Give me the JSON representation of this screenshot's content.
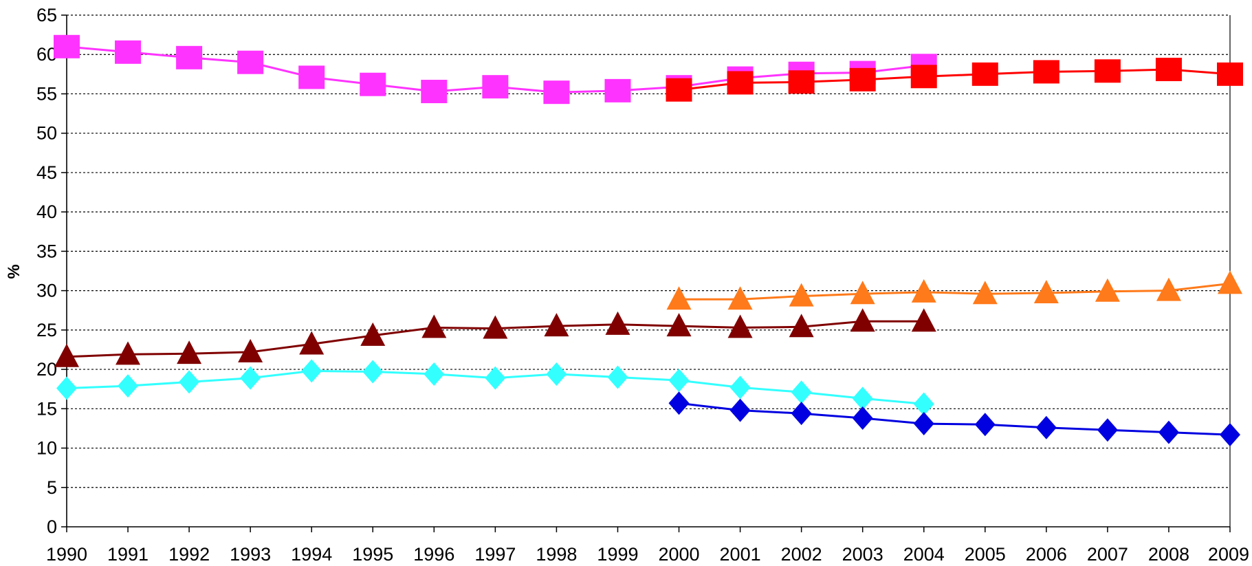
{
  "chart_data": {
    "type": "line",
    "title": "",
    "xlabel": "",
    "ylabel": "%",
    "ylim": [
      0,
      65
    ],
    "y_ticks": [
      "0",
      "5",
      "10",
      "15",
      "20",
      "25",
      "30",
      "35",
      "40",
      "45",
      "50",
      "55",
      "60",
      "65"
    ],
    "x": [
      "1990",
      "1991",
      "1992",
      "1993",
      "1994",
      "1995",
      "1996",
      "1997",
      "1998",
      "1999",
      "2000",
      "2001",
      "2002",
      "2003",
      "2004",
      "2005",
      "2006",
      "2007",
      "2008",
      "2009"
    ],
    "grid": "horizontal-dotted",
    "legend": "none",
    "series": [
      {
        "color": "#ff33ff",
        "marker": "square",
        "values": [
          61.0,
          60.3,
          59.6,
          59.0,
          57.1,
          56.2,
          55.3,
          55.9,
          55.2,
          55.4,
          55.9,
          57.0,
          57.6,
          57.7,
          58.6,
          null,
          null,
          null,
          null,
          null
        ]
      },
      {
        "color": "#ff0000",
        "marker": "square",
        "values": [
          null,
          null,
          null,
          null,
          null,
          null,
          null,
          null,
          null,
          null,
          55.5,
          56.4,
          56.5,
          56.8,
          57.2,
          57.5,
          57.8,
          57.9,
          58.1,
          57.5
        ]
      },
      {
        "color": "#ff7a1a",
        "marker": "triangle",
        "values": [
          null,
          null,
          null,
          null,
          null,
          null,
          null,
          null,
          null,
          null,
          28.9,
          28.9,
          29.3,
          29.6,
          29.8,
          29.6,
          29.7,
          29.9,
          30.0,
          30.9
        ]
      },
      {
        "color": "#800000",
        "marker": "triangle",
        "values": [
          21.6,
          21.9,
          22.0,
          22.2,
          23.2,
          24.3,
          25.3,
          25.2,
          25.5,
          25.7,
          25.5,
          25.3,
          25.4,
          26.1,
          26.1,
          null,
          null,
          null,
          null,
          null
        ]
      },
      {
        "color": "#33ffff",
        "marker": "diamond",
        "values": [
          17.6,
          17.9,
          18.4,
          18.9,
          19.8,
          19.7,
          19.4,
          18.9,
          19.4,
          19.0,
          18.6,
          17.7,
          17.1,
          16.3,
          15.6,
          null,
          null,
          null,
          null,
          null
        ]
      },
      {
        "color": "#0000e0",
        "marker": "diamond",
        "values": [
          null,
          null,
          null,
          null,
          null,
          null,
          null,
          null,
          null,
          null,
          15.7,
          14.8,
          14.4,
          13.8,
          13.1,
          13.0,
          12.6,
          12.3,
          12.0,
          11.7
        ]
      }
    ]
  }
}
